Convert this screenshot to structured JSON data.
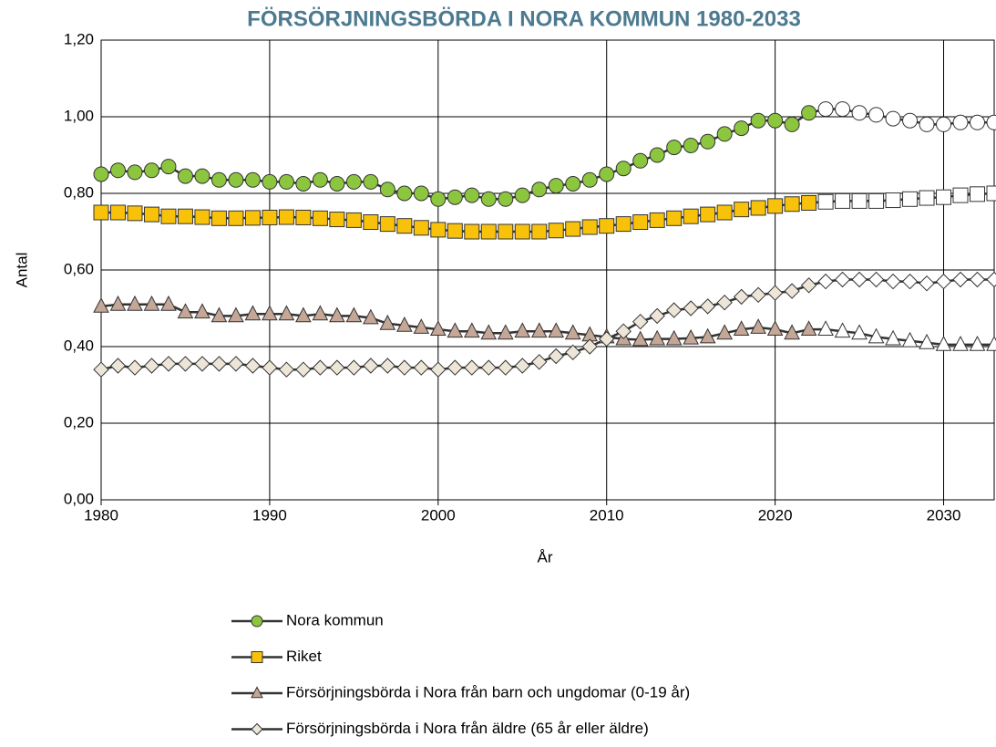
{
  "chart_data": {
    "type": "line",
    "title": "FÖRSÖRJNINGSBÖRDA I NORA KOMMUN 1980-2033",
    "x_label": "År",
    "y_label": "Antal",
    "x": [
      1980,
      1981,
      1982,
      1983,
      1984,
      1985,
      1986,
      1987,
      1988,
      1989,
      1990,
      1991,
      1992,
      1993,
      1994,
      1995,
      1996,
      1997,
      1998,
      1999,
      2000,
      2001,
      2002,
      2003,
      2004,
      2005,
      2006,
      2007,
      2008,
      2009,
      2010,
      2011,
      2012,
      2013,
      2014,
      2015,
      2016,
      2017,
      2018,
      2019,
      2020,
      2021,
      2022,
      2023,
      2024,
      2025,
      2026,
      2027,
      2028,
      2029,
      2030,
      2031,
      2032,
      2033
    ],
    "xlim": [
      1980,
      2033
    ],
    "xticks": [
      1980,
      1990,
      2000,
      2010,
      2020,
      2030
    ],
    "ylim": [
      0,
      1.2
    ],
    "yticks": [
      {
        "value": 0,
        "label": "0,00"
      },
      {
        "value": 0.2,
        "label": "0,20"
      },
      {
        "value": 0.4,
        "label": "0,40"
      },
      {
        "value": 0.6,
        "label": "0,60"
      },
      {
        "value": 0.8,
        "label": "0,80"
      },
      {
        "value": 1.0,
        "label": "1,00"
      },
      {
        "value": 1.2,
        "label": "1,20"
      }
    ],
    "grid": true,
    "legend": "bottom",
    "line_color": "#333333",
    "forecast_start": 2023,
    "series": [
      {
        "name": "Nora kommun",
        "marker": "circle",
        "color": "#8cc63f",
        "forecast_color": "#ffffff",
        "values": [
          0.85,
          0.86,
          0.855,
          0.86,
          0.87,
          0.845,
          0.845,
          0.835,
          0.835,
          0.835,
          0.83,
          0.83,
          0.825,
          0.835,
          0.825,
          0.83,
          0.83,
          0.81,
          0.8,
          0.8,
          0.785,
          0.79,
          0.795,
          0.785,
          0.785,
          0.795,
          0.81,
          0.82,
          0.825,
          0.835,
          0.85,
          0.865,
          0.885,
          0.9,
          0.92,
          0.925,
          0.935,
          0.955,
          0.97,
          0.99,
          0.99,
          0.98,
          1.01,
          1.02,
          1.02,
          1.01,
          1.005,
          0.995,
          0.99,
          0.98,
          0.98,
          0.985,
          0.985,
          0.985
        ]
      },
      {
        "name": "Riket",
        "marker": "square",
        "color": "#f9c20a",
        "forecast_color": "#ffffff",
        "values": [
          0.75,
          0.75,
          0.748,
          0.745,
          0.74,
          0.74,
          0.738,
          0.735,
          0.735,
          0.736,
          0.737,
          0.738,
          0.737,
          0.735,
          0.732,
          0.73,
          0.725,
          0.72,
          0.715,
          0.71,
          0.705,
          0.702,
          0.7,
          0.7,
          0.7,
          0.7,
          0.7,
          0.703,
          0.707,
          0.712,
          0.715,
          0.72,
          0.725,
          0.73,
          0.735,
          0.74,
          0.745,
          0.75,
          0.758,
          0.762,
          0.767,
          0.772,
          0.775,
          0.778,
          0.78,
          0.78,
          0.78,
          0.782,
          0.785,
          0.788,
          0.79,
          0.795,
          0.798,
          0.8
        ]
      },
      {
        "name": "Försörjningsbörda i Nora från barn och ungdomar (0-19 år)",
        "marker": "triangle",
        "color": "#c4a797",
        "forecast_color": "#ffffff",
        "values": [
          0.505,
          0.51,
          0.51,
          0.51,
          0.51,
          0.49,
          0.49,
          0.48,
          0.48,
          0.485,
          0.485,
          0.485,
          0.48,
          0.485,
          0.48,
          0.48,
          0.475,
          0.46,
          0.455,
          0.45,
          0.445,
          0.44,
          0.44,
          0.435,
          0.435,
          0.44,
          0.44,
          0.44,
          0.435,
          0.43,
          0.425,
          0.42,
          0.418,
          0.42,
          0.42,
          0.422,
          0.425,
          0.435,
          0.445,
          0.45,
          0.445,
          0.435,
          0.445,
          0.445,
          0.44,
          0.435,
          0.425,
          0.42,
          0.415,
          0.41,
          0.405,
          0.405,
          0.405,
          0.405
        ]
      },
      {
        "name": "Försörjningsbörda i Nora från äldre (65 år eller äldre)",
        "marker": "diamond",
        "color": "#ede6d8",
        "forecast_color": "#ffffff",
        "values": [
          0.34,
          0.35,
          0.345,
          0.35,
          0.355,
          0.355,
          0.355,
          0.355,
          0.355,
          0.35,
          0.345,
          0.34,
          0.34,
          0.345,
          0.345,
          0.345,
          0.35,
          0.35,
          0.345,
          0.345,
          0.34,
          0.345,
          0.345,
          0.345,
          0.345,
          0.35,
          0.36,
          0.375,
          0.385,
          0.4,
          0.42,
          0.44,
          0.465,
          0.48,
          0.495,
          0.5,
          0.505,
          0.515,
          0.53,
          0.535,
          0.54,
          0.545,
          0.56,
          0.57,
          0.575,
          0.575,
          0.575,
          0.57,
          0.57,
          0.565,
          0.57,
          0.575,
          0.575,
          0.575
        ]
      }
    ]
  }
}
